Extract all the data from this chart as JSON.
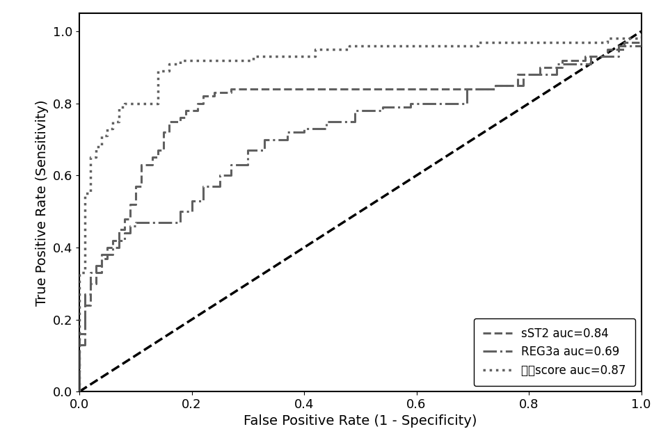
{
  "xlabel": "False Positive Rate (1 - Specificity)",
  "ylabel": "True Positive Rate (Sensitivity)",
  "xlim": [
    0.0,
    1.0
  ],
  "ylim": [
    0.0,
    1.05
  ],
  "xticks": [
    0.0,
    0.2,
    0.4,
    0.6,
    0.8,
    1.0
  ],
  "yticks": [
    0.0,
    0.2,
    0.4,
    0.6,
    0.8,
    1.0
  ],
  "curve_color": "#606060",
  "diagonal_color": "#000000",
  "legend_labels": [
    "sST2 auc=0.84",
    "REG3a auc=0.69",
    "模型score auc=0.87"
  ],
  "legend_loc": "lower right",
  "background_color": "#ffffff",
  "sst2_fpr": [
    0.0,
    0.0,
    0.0,
    0.0,
    0.01,
    0.01,
    0.02,
    0.02,
    0.03,
    0.04,
    0.04,
    0.05,
    0.06,
    0.07,
    0.08,
    0.09,
    0.1,
    0.11,
    0.13,
    0.14,
    0.15,
    0.16,
    0.18,
    0.19,
    0.21,
    0.22,
    0.24,
    0.25,
    0.27,
    0.3,
    0.33,
    0.37,
    0.4,
    0.44,
    0.48,
    0.53,
    0.57,
    0.62,
    0.66,
    0.7,
    0.74,
    0.78,
    0.82,
    0.86,
    0.9,
    0.94,
    0.97,
    1.0
  ],
  "sst2_tpr": [
    0.0,
    0.06,
    0.12,
    0.16,
    0.2,
    0.24,
    0.27,
    0.3,
    0.33,
    0.35,
    0.38,
    0.4,
    0.42,
    0.45,
    0.48,
    0.52,
    0.57,
    0.63,
    0.65,
    0.67,
    0.72,
    0.75,
    0.76,
    0.78,
    0.8,
    0.82,
    0.83,
    0.83,
    0.84,
    0.84,
    0.84,
    0.84,
    0.84,
    0.84,
    0.84,
    0.84,
    0.84,
    0.84,
    0.84,
    0.84,
    0.85,
    0.88,
    0.9,
    0.92,
    0.93,
    0.95,
    0.97,
    1.0
  ],
  "reg3a_fpr": [
    0.0,
    0.0,
    0.01,
    0.01,
    0.02,
    0.02,
    0.03,
    0.04,
    0.05,
    0.06,
    0.07,
    0.08,
    0.09,
    0.1,
    0.11,
    0.12,
    0.14,
    0.16,
    0.18,
    0.2,
    0.22,
    0.25,
    0.27,
    0.3,
    0.33,
    0.37,
    0.4,
    0.44,
    0.49,
    0.54,
    0.59,
    0.64,
    0.69,
    0.74,
    0.79,
    0.85,
    0.91,
    0.96,
    1.0
  ],
  "reg3a_tpr": [
    0.0,
    0.13,
    0.22,
    0.27,
    0.3,
    0.33,
    0.35,
    0.37,
    0.38,
    0.4,
    0.42,
    0.44,
    0.46,
    0.47,
    0.47,
    0.47,
    0.47,
    0.47,
    0.5,
    0.53,
    0.57,
    0.6,
    0.63,
    0.67,
    0.7,
    0.72,
    0.73,
    0.75,
    0.78,
    0.79,
    0.8,
    0.8,
    0.84,
    0.85,
    0.88,
    0.91,
    0.93,
    0.96,
    1.0
  ],
  "model_fpr": [
    0.0,
    0.0,
    0.0,
    0.0,
    0.01,
    0.01,
    0.01,
    0.02,
    0.02,
    0.03,
    0.04,
    0.05,
    0.06,
    0.07,
    0.08,
    0.09,
    0.1,
    0.12,
    0.14,
    0.16,
    0.18,
    0.21,
    0.24,
    0.27,
    0.31,
    0.36,
    0.42,
    0.48,
    0.55,
    0.63,
    0.71,
    0.79,
    0.87,
    0.94,
    1.0
  ],
  "model_tpr": [
    0.0,
    0.1,
    0.22,
    0.33,
    0.4,
    0.46,
    0.55,
    0.6,
    0.65,
    0.68,
    0.71,
    0.73,
    0.75,
    0.79,
    0.8,
    0.8,
    0.8,
    0.8,
    0.89,
    0.91,
    0.92,
    0.92,
    0.92,
    0.92,
    0.93,
    0.93,
    0.95,
    0.96,
    0.96,
    0.96,
    0.97,
    0.97,
    0.97,
    0.98,
    1.0
  ]
}
